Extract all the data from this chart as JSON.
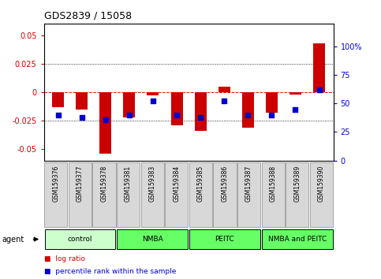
{
  "title": "GDS2839 / 15058",
  "samples": [
    "GSM159376",
    "GSM159377",
    "GSM159378",
    "GSM159381",
    "GSM159383",
    "GSM159384",
    "GSM159385",
    "GSM159386",
    "GSM159387",
    "GSM159388",
    "GSM159389",
    "GSM159390"
  ],
  "log_ratios": [
    -0.013,
    -0.015,
    -0.054,
    -0.022,
    -0.003,
    -0.029,
    -0.034,
    0.005,
    -0.031,
    -0.018,
    -0.002,
    0.043
  ],
  "percentile_ranks": [
    40,
    38,
    36,
    40,
    52,
    40,
    38,
    52,
    40,
    40,
    45,
    62
  ],
  "groups": [
    {
      "label": "control",
      "start": 0,
      "end": 3
    },
    {
      "label": "NMBA",
      "start": 3,
      "end": 6
    },
    {
      "label": "PEITC",
      "start": 6,
      "end": 9
    },
    {
      "label": "NMBA and PEITC",
      "start": 9,
      "end": 12
    }
  ],
  "group_colors": [
    "#ccffcc",
    "#66ff66",
    "#66ff66",
    "#66ff66"
  ],
  "ylim_left": [
    -0.06,
    0.06
  ],
  "ylim_right": [
    0,
    120
  ],
  "yticks_left": [
    -0.05,
    -0.025,
    0.0,
    0.025,
    0.05
  ],
  "yticks_right": [
    0,
    25,
    50,
    75,
    100
  ],
  "bar_color": "#cc0000",
  "dot_color": "#0000cc",
  "background_color": "#ffffff",
  "bar_width": 0.5
}
